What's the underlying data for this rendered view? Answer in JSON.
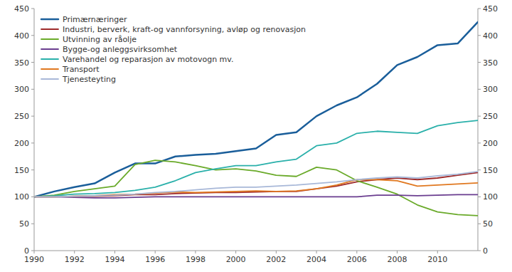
{
  "chart_data": {
    "type": "line",
    "x": [
      1990,
      1991,
      1992,
      1993,
      1994,
      1995,
      1996,
      1997,
      1998,
      1999,
      2000,
      2001,
      2002,
      2003,
      2004,
      2005,
      2006,
      2007,
      2008,
      2009,
      2010,
      2011,
      2012
    ],
    "series": [
      {
        "name": "Primærnæringer",
        "color": "#1a5e9a",
        "values": [
          100,
          110,
          118,
          125,
          145,
          162,
          162,
          175,
          178,
          180,
          185,
          190,
          215,
          220,
          250,
          270,
          285,
          310,
          345,
          360,
          382,
          385,
          425
        ]
      },
      {
        "name": "Industri, berverk, kraft-og vannforsyning, avløp og renovasjon",
        "color": "#9e2a2a",
        "values": [
          100,
          100,
          101,
          101,
          102,
          104,
          104,
          106,
          107,
          108,
          108,
          109,
          110,
          110,
          115,
          120,
          128,
          132,
          135,
          132,
          135,
          140,
          145
        ]
      },
      {
        "name": "Utvinning av råolje",
        "color": "#6aaa2a",
        "values": [
          100,
          103,
          110,
          115,
          120,
          160,
          168,
          165,
          158,
          150,
          152,
          148,
          140,
          138,
          155,
          150,
          130,
          118,
          105,
          85,
          72,
          67,
          65
        ]
      },
      {
        "name": "Bygge-og anleggsvirksomhet",
        "color": "#6a3d8f",
        "values": [
          100,
          100,
          99,
          98,
          98,
          99,
          100,
          100,
          100,
          100,
          100,
          100,
          100,
          100,
          100,
          100,
          100,
          103,
          103,
          102,
          103,
          104,
          104
        ]
      },
      {
        "name": "Varehandel og reparasjon av motovogn mv.",
        "color": "#2ab0aa",
        "values": [
          100,
          102,
          105,
          106,
          108,
          112,
          118,
          130,
          145,
          152,
          158,
          158,
          165,
          170,
          195,
          200,
          218,
          222,
          220,
          218,
          232,
          238,
          242
        ]
      },
      {
        "name": "Transport",
        "color": "#e07820",
        "values": [
          100,
          100,
          101,
          102,
          104,
          105,
          107,
          109,
          108,
          109,
          110,
          111,
          110,
          111,
          115,
          122,
          132,
          132,
          130,
          120,
          122,
          124,
          126
        ]
      },
      {
        "name": "Tjenesteyting",
        "color": "#a8b8d8",
        "values": [
          100,
          100,
          101,
          102,
          103,
          105,
          108,
          110,
          113,
          116,
          118,
          118,
          120,
          122,
          125,
          128,
          132,
          135,
          137,
          135,
          139,
          142,
          147
        ]
      }
    ],
    "xlim": [
      1990,
      2012
    ],
    "xticks": [
      1990,
      1992,
      1994,
      1996,
      1998,
      2000,
      2002,
      2004,
      2006,
      2008,
      2010
    ],
    "ylim": [
      0,
      450
    ],
    "yticks": [
      0,
      50,
      100,
      150,
      200,
      250,
      300,
      350,
      400,
      450
    ],
    "y2lim": [
      0,
      450
    ],
    "y2ticks": [
      0,
      50,
      100,
      150,
      200,
      250,
      300,
      350,
      400,
      450
    ],
    "grid": false,
    "legend": "upper left"
  }
}
